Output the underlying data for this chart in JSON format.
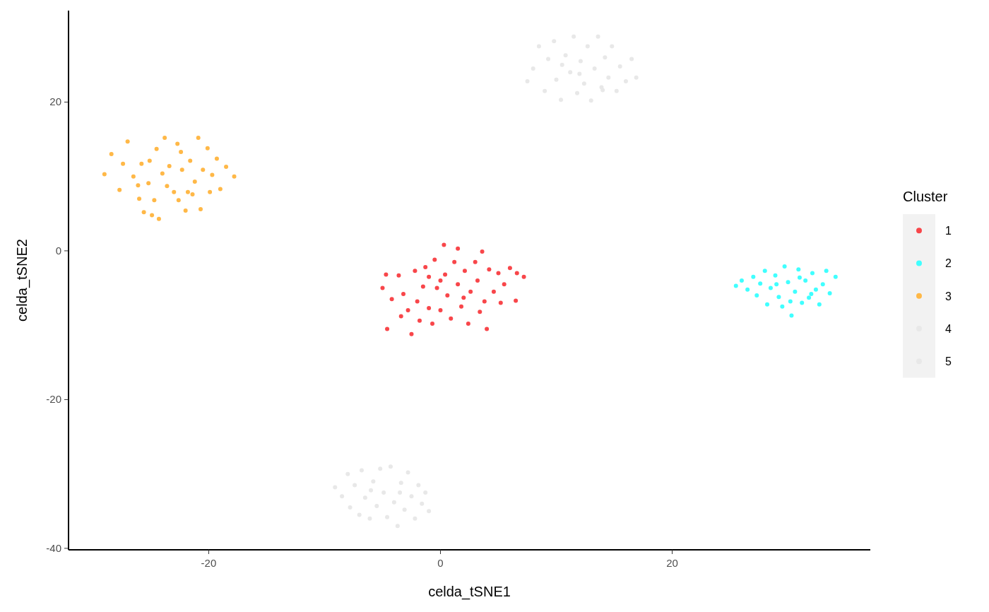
{
  "chart_data": {
    "type": "scatter",
    "xlabel": "celda_tSNE1",
    "ylabel": "celda_tSNE2",
    "legend_title": "Cluster",
    "legend": "right",
    "marker": "circle",
    "grid": false,
    "xlim": [
      -32.1,
      37.1
    ],
    "ylim": [
      -40.2,
      32.3
    ],
    "xticks": [
      -20,
      0,
      20
    ],
    "yticks": [
      -40,
      -20,
      0,
      20
    ],
    "series": [
      {
        "name": "1",
        "color": "#f8464a",
        "x": [
          -5,
          -4.7,
          -4.6,
          -4.2,
          -3.6,
          -3.4,
          -3.2,
          -2.8,
          -2.5,
          -2.2,
          -2.0,
          -1.8,
          -1.5,
          -1.3,
          -1.0,
          -0.7,
          -0.5,
          -0.3,
          0,
          0.3,
          0.4,
          0.6,
          0.9,
          1.2,
          1.5,
          1.5,
          1.8,
          2.1,
          2.4,
          2.6,
          3.0,
          3.2,
          3.4,
          3.6,
          3.8,
          4.0,
          4.2,
          4.6,
          5.0,
          5.2,
          5.5,
          6.0,
          6.5,
          6.6,
          7.2,
          0,
          -1,
          2
        ],
        "values": [
          -5,
          -3.2,
          -10.5,
          -6.5,
          -3.3,
          -8.8,
          -5.8,
          -8.0,
          -11.2,
          -2.7,
          -6.8,
          -9.4,
          -4.8,
          -2.2,
          -7.7,
          -9.8,
          -1.2,
          -5.0,
          -8.0,
          0.8,
          -3.2,
          -6.0,
          -9.1,
          -1.5,
          0.3,
          -4.5,
          -7.5,
          -2.7,
          -9.8,
          -5.5,
          -1.5,
          -4.0,
          -8.2,
          -0.1,
          -6.8,
          -10.5,
          -2.5,
          -5.5,
          -3.0,
          -7.0,
          -4.5,
          -2.3,
          -6.7,
          -3.0,
          -3.5,
          -4.0,
          -3.5,
          -6.3
        ]
      },
      {
        "name": "2",
        "color": "#40ffff",
        "x": [
          25.5,
          26.0,
          26.5,
          27,
          27.3,
          27.6,
          28,
          28.2,
          28.5,
          28.9,
          29.2,
          29.5,
          29.7,
          30,
          30.3,
          30.6,
          30.9,
          31.2,
          31.5,
          31.8,
          32.1,
          32.4,
          32.7,
          33.0,
          33.3,
          33.6,
          34.1,
          29,
          30.2,
          31,
          32
        ],
        "values": [
          -4.7,
          -4.0,
          -5.2,
          -3.5,
          -6.0,
          -4.4,
          -2.7,
          -7.2,
          -5.0,
          -3.3,
          -6.2,
          -7.5,
          -2.1,
          -4.2,
          -8.7,
          -5.5,
          -2.5,
          -7.0,
          -4.0,
          -6.3,
          -3.0,
          -5.2,
          -7.2,
          -4.5,
          -2.7,
          -5.7,
          -3.5,
          -4.5,
          -6.8,
          -3.6,
          -5.8
        ]
      },
      {
        "name": "3",
        "color": "#ffb847",
        "x": [
          -29.0,
          -28.4,
          -27.7,
          -27.0,
          -26.5,
          -26.0,
          -25.6,
          -24.9,
          -24.3,
          -24.5,
          -23.8,
          -23.6,
          -23.4,
          -22.7,
          -22.6,
          -22.0,
          -21.6,
          -21.2,
          -20.9,
          -20.7,
          -20.1,
          -19.9,
          -19.3,
          -19.0,
          -18.5,
          -17.8,
          -27.4,
          -25.8,
          -25.2,
          -24.0,
          -23.0,
          -22.3,
          -21.8,
          -20.5,
          -19.7,
          -24.7,
          -22.4,
          -25.1,
          -26.1,
          -21.4
        ],
        "values": [
          10.3,
          13.0,
          8.2,
          14.7,
          10.0,
          7.0,
          5.2,
          4.8,
          4.3,
          13.7,
          15.2,
          8.7,
          11.4,
          14.4,
          6.8,
          5.4,
          12.1,
          9.3,
          15.2,
          5.6,
          13.8,
          7.9,
          12.4,
          8.3,
          11.3,
          10.0,
          11.7,
          11.7,
          9.1,
          10.4,
          7.9,
          10.9,
          7.9,
          10.9,
          10.2,
          6.8,
          13.3,
          12.1,
          8.8,
          7.6
        ]
      },
      {
        "name": "4",
        "color": "#e8e8e8",
        "x": [
          7.5,
          8,
          8.5,
          9,
          9.3,
          9.8,
          10,
          10.4,
          10.8,
          11.2,
          11.5,
          11.8,
          12.1,
          12.4,
          12.7,
          13.0,
          13.3,
          13.6,
          13.9,
          14.2,
          14.5,
          14.8,
          15.2,
          15.5,
          16,
          16.5,
          16.9,
          10.5,
          12,
          14
        ],
        "values": [
          22.8,
          24.5,
          27.5,
          21.5,
          25.8,
          28.2,
          23.0,
          20.3,
          26.3,
          24.0,
          28.8,
          21.2,
          25.5,
          22.5,
          27.5,
          20.2,
          24.5,
          28.8,
          22.0,
          26.0,
          23.3,
          27.5,
          21.5,
          24.8,
          22.8,
          25.8,
          23.3,
          25,
          23.8,
          21.6
        ]
      },
      {
        "name": "5",
        "color": "#e8e8e8",
        "x": [
          -9.1,
          -8.5,
          -8,
          -7.8,
          -7.4,
          -7,
          -6.8,
          -6.5,
          -6.1,
          -5.8,
          -5.5,
          -5.2,
          -4.9,
          -4.6,
          -4.3,
          -4,
          -3.7,
          -3.4,
          -3.1,
          -2.8,
          -2.5,
          -2.2,
          -1.9,
          -1.6,
          -1.3,
          -1.0,
          -6,
          -3.5
        ],
        "values": [
          -31.8,
          -33,
          -30,
          -34.5,
          -31.5,
          -35.5,
          -29.5,
          -33.2,
          -36,
          -31,
          -34.3,
          -29.3,
          -32.5,
          -35.8,
          -29,
          -33.8,
          -37,
          -31.2,
          -34.8,
          -29.8,
          -33,
          -36,
          -31.5,
          -34,
          -32.5,
          -35,
          -32.2,
          -32.5
        ]
      }
    ]
  }
}
